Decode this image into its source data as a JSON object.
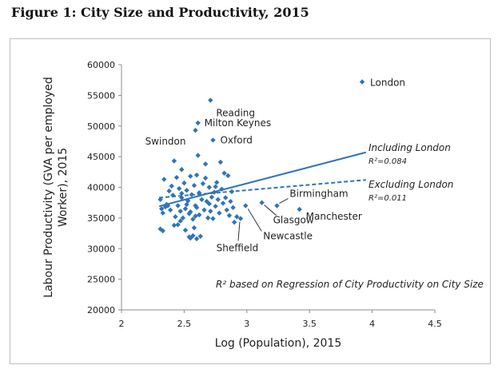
{
  "figure_title": "Figure 1: City Size and Productivity, 2015",
  "chart_data": {
    "type": "scatter",
    "xlabel": "Log (Population), 2015",
    "ylabel_line1": "Labour Productivity (GVA per employed",
    "ylabel_line2": "Worker), 2015",
    "xlim": [
      2,
      4.5
    ],
    "ylim": [
      20000,
      60000
    ],
    "x_ticks": [
      2,
      2.5,
      3,
      3.5,
      4,
      4.5
    ],
    "x_tick_labels": [
      "2",
      "2.5",
      "3",
      "3.5",
      "4",
      "4.5"
    ],
    "y_ticks": [
      20000,
      25000,
      30000,
      35000,
      40000,
      45000,
      50000,
      55000,
      60000
    ],
    "y_tick_labels": [
      "20000",
      "25000",
      "30000",
      "35000",
      "40000",
      "45000",
      "50000",
      "55000",
      "60000"
    ],
    "marker_color": "#2e75b6",
    "line_color": "#2e75b6",
    "points": [
      [
        2.31,
        38000
      ],
      [
        2.32,
        36500
      ],
      [
        2.33,
        35800
      ],
      [
        2.34,
        41300
      ],
      [
        2.35,
        36800
      ],
      [
        2.31,
        33200
      ],
      [
        2.33,
        32900
      ],
      [
        2.36,
        37200
      ],
      [
        2.38,
        39400
      ],
      [
        2.39,
        36300
      ],
      [
        2.4,
        40200
      ],
      [
        2.41,
        38700
      ],
      [
        2.42,
        44300
      ],
      [
        2.43,
        35200
      ],
      [
        2.44,
        41600
      ],
      [
        2.45,
        37000
      ],
      [
        2.45,
        33900
      ],
      [
        2.46,
        39800
      ],
      [
        2.47,
        36100
      ],
      [
        2.48,
        42900
      ],
      [
        2.48,
        38300
      ],
      [
        2.49,
        35000
      ],
      [
        2.5,
        40700
      ],
      [
        2.51,
        36500
      ],
      [
        2.51,
        33000
      ],
      [
        2.52,
        39500
      ],
      [
        2.53,
        37800
      ],
      [
        2.54,
        35700
      ],
      [
        2.55,
        41800
      ],
      [
        2.55,
        36000
      ],
      [
        2.56,
        38800
      ],
      [
        2.57,
        34800
      ],
      [
        2.58,
        40300
      ],
      [
        2.58,
        33400
      ],
      [
        2.59,
        37000
      ],
      [
        2.6,
        42000
      ],
      [
        2.6,
        36700
      ],
      [
        2.61,
        45200
      ],
      [
        2.62,
        39100
      ],
      [
        2.62,
        35500
      ],
      [
        2.63,
        32000
      ],
      [
        2.64,
        38000
      ],
      [
        2.65,
        40600
      ],
      [
        2.66,
        36300
      ],
      [
        2.67,
        43800
      ],
      [
        2.68,
        37700
      ],
      [
        2.69,
        35000
      ],
      [
        2.7,
        40000
      ],
      [
        2.71,
        36100
      ],
      [
        2.72,
        38400
      ],
      [
        2.73,
        34900
      ],
      [
        2.74,
        39200
      ],
      [
        2.75,
        36900
      ],
      [
        2.76,
        40800
      ],
      [
        2.77,
        38000
      ],
      [
        2.78,
        35800
      ],
      [
        2.79,
        44100
      ],
      [
        2.8,
        39700
      ],
      [
        2.81,
        37400
      ],
      [
        2.82,
        42300
      ],
      [
        2.83,
        38300
      ],
      [
        2.84,
        36300
      ],
      [
        2.85,
        41900
      ],
      [
        2.86,
        35400
      ],
      [
        2.87,
        37700
      ],
      [
        2.88,
        39300
      ],
      [
        2.89,
        36700
      ],
      [
        2.9,
        34300
      ],
      [
        2.92,
        35200
      ],
      [
        2.54,
        31900
      ],
      [
        2.55,
        31700
      ],
      [
        2.6,
        31600
      ],
      [
        2.57,
        32100
      ],
      [
        2.47,
        34500
      ],
      [
        2.42,
        33800
      ],
      [
        2.37,
        37000
      ],
      [
        2.48,
        39000
      ],
      [
        2.52,
        37200
      ],
      [
        2.67,
        41500
      ],
      [
        2.7,
        37300
      ],
      [
        2.75,
        40100
      ],
      [
        2.59,
        35300
      ],
      [
        2.61,
        50500
      ],
      [
        2.59,
        49300
      ],
      [
        2.71,
        54200
      ],
      [
        2.73,
        47700
      ],
      [
        2.95,
        34900
      ],
      [
        2.99,
        37000
      ],
      [
        3.12,
        37500
      ],
      [
        3.24,
        37000
      ],
      [
        3.42,
        36400
      ],
      [
        3.92,
        57200
      ]
    ],
    "city_labels": [
      {
        "name": "London",
        "x": 3.92,
        "y": 57200
      },
      {
        "name": "Reading",
        "x": 2.71,
        "y": 54200
      },
      {
        "name": "Milton Keynes",
        "x": 2.61,
        "y": 50500
      },
      {
        "name": "Swindon",
        "x": 2.59,
        "y": 49300
      },
      {
        "name": "Oxford",
        "x": 2.73,
        "y": 47700
      },
      {
        "name": "Birmingham",
        "x": 3.24,
        "y": 37000
      },
      {
        "name": "Manchester",
        "x": 3.42,
        "y": 36400
      },
      {
        "name": "Glasgow",
        "x": 3.12,
        "y": 37500
      },
      {
        "name": "Newcastle",
        "x": 2.99,
        "y": 37000
      },
      {
        "name": "Sheffield",
        "x": 2.95,
        "y": 34900
      }
    ],
    "fit_including": {
      "label": "Including London",
      "r2": "R²=0.084",
      "x": [
        2.3,
        3.95
      ],
      "y": [
        36900,
        45700
      ]
    },
    "fit_excluding": {
      "label": "Excluding London",
      "r2": "R²=0.011",
      "x": [
        2.3,
        3.95
      ],
      "y": [
        38300,
        41200
      ]
    },
    "note": "R² based on Regression of City Productivity  on City Size"
  }
}
